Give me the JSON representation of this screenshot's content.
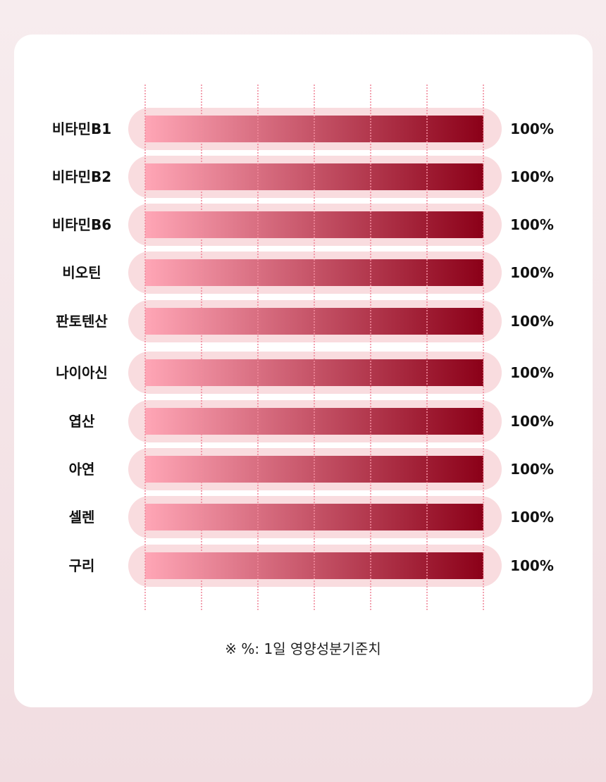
{
  "chart_data": {
    "type": "bar",
    "orientation": "horizontal",
    "categories": [
      "비타민B1",
      "비타민B2",
      "비타민B6",
      "비오틴",
      "판토텐산",
      "나이아신",
      "엽산",
      "아연",
      "셀렌",
      "구리"
    ],
    "values": [
      100,
      100,
      100,
      100,
      100,
      100,
      100,
      100,
      100,
      100
    ],
    "value_labels": [
      "100%",
      "100%",
      "100%",
      "100%",
      "100%",
      "100%",
      "100%",
      "100%",
      "100%",
      "100%"
    ],
    "xlim": [
      0,
      100
    ],
    "grid": true,
    "legend": "none"
  },
  "footnote": "※ %: 1일 영양성분기준치",
  "colors": {
    "page_background": "#f3e4e7",
    "card_background": "#ffffff",
    "track": "#f9dcdf",
    "bar_start": "#ffa6b6",
    "bar_end": "#8b0018",
    "gridline": "#f08a9c"
  }
}
